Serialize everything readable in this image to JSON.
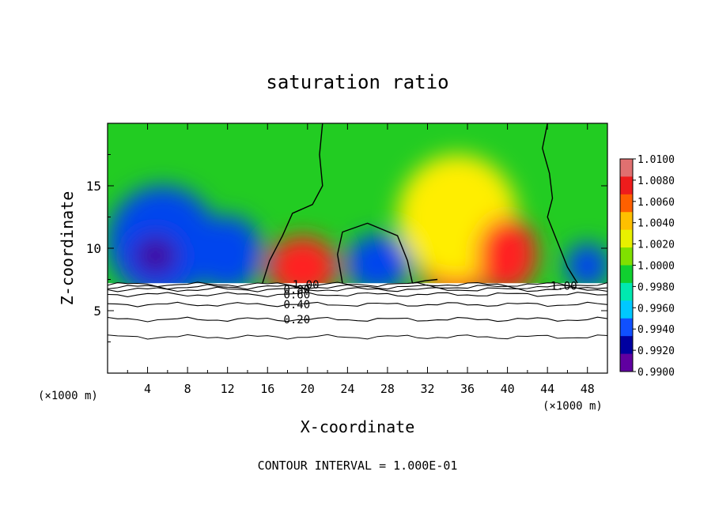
{
  "chart_data": {
    "type": "heatmap",
    "title": "saturation ratio",
    "xlabel": "X-coordinate",
    "ylabel": "Z-coordinate",
    "x_unit": "(×1000 m)",
    "x_unit_right": "(×1000 m)",
    "footer": "CONTOUR INTERVAL = 1.000E-01",
    "xlim": [
      0,
      50
    ],
    "ylim": [
      0,
      20
    ],
    "x_ticks": [
      "4",
      "8",
      "12",
      "16",
      "20",
      "24",
      "28",
      "32",
      "36",
      "40",
      "44",
      "48"
    ],
    "x_tick_values": [
      4,
      8,
      12,
      16,
      20,
      24,
      28,
      32,
      36,
      40,
      44,
      48
    ],
    "y_ticks": [
      "5",
      "10",
      "15"
    ],
    "y_tick_values": [
      5,
      10,
      15
    ],
    "colorbar": {
      "labels": [
        "1.0100",
        "1.0080",
        "1.0060",
        "1.0040",
        "1.0020",
        "1.0000",
        "0.9980",
        "0.9960",
        "0.9940",
        "0.9920",
        "0.9900"
      ],
      "values": [
        1.01,
        1.008,
        1.006,
        1.004,
        1.002,
        1.0,
        0.998,
        0.996,
        0.994,
        0.992,
        0.99
      ],
      "colors": [
        "#e07070",
        "#ee1c1c",
        "#ff6000",
        "#ffc000",
        "#e8f000",
        "#80e000",
        "#10d030",
        "#00e8b0",
        "#00c8ff",
        "#1050ff",
        "#0000a0",
        "#6000a0"
      ]
    },
    "field_colors": {
      "background": "#22cc22",
      "high": "#ff2020",
      "mid": "#ffee00",
      "low": "#0044ee",
      "very_low": "#4000a0",
      "subsaturated_layer": "#ffffff"
    },
    "contour_labels": [
      {
        "text": "1.00",
        "x": 18.5,
        "y": 7.1
      },
      {
        "text": "0.80",
        "x": 17.6,
        "y": 6.7
      },
      {
        "text": "0.60",
        "x": 17.6,
        "y": 6.3
      },
      {
        "text": "0.40",
        "x": 17.6,
        "y": 5.5
      },
      {
        "text": "0.20",
        "x": 17.6,
        "y": 4.3
      },
      {
        "text": "1.00",
        "x": 44.3,
        "y": 7.0
      }
    ],
    "lower_contours": [
      {
        "level": 0.2,
        "y": 4.3
      },
      {
        "level": 0.4,
        "y": 5.5
      },
      {
        "level": 0.6,
        "y": 6.3
      },
      {
        "level": 0.8,
        "y": 6.7
      },
      {
        "level": 0.9,
        "y": 6.9
      },
      {
        "level": 1.0,
        "y": 7.1
      }
    ],
    "base_contour": {
      "y": 2.9
    },
    "boundary_z": 7.2,
    "blobs": [
      {
        "kind": "low",
        "cx": 5.5,
        "cy": 10.5,
        "rx": 5.5,
        "ry": 4.5
      },
      {
        "kind": "very_low",
        "cx": 4.8,
        "cy": 9.4,
        "rx": 2.2,
        "ry": 1.6
      },
      {
        "kind": "low",
        "cx": 12.0,
        "cy": 9.6,
        "rx": 3.5,
        "ry": 3.0
      },
      {
        "kind": "high",
        "cx": 19.5,
        "cy": 8.5,
        "rx": 3.5,
        "ry": 2.5
      },
      {
        "kind": "low",
        "cx": 27.0,
        "cy": 8.8,
        "rx": 3.2,
        "ry": 2.3
      },
      {
        "kind": "high",
        "cx": 35.0,
        "cy": 10.5,
        "rx": 4.5,
        "ry": 4.8
      },
      {
        "kind": "mid",
        "cx": 35.0,
        "cy": 12.5,
        "rx": 6.0,
        "ry": 5.0
      },
      {
        "kind": "high",
        "cx": 40.0,
        "cy": 9.5,
        "rx": 3.0,
        "ry": 3.0
      },
      {
        "kind": "low",
        "cx": 48.0,
        "cy": 8.6,
        "rx": 2.2,
        "ry": 1.8
      }
    ],
    "saturation_contours": [
      [
        [
          15.5,
          7.2
        ],
        [
          16.2,
          9.0
        ],
        [
          17.5,
          11.0
        ],
        [
          18.5,
          12.8
        ],
        [
          20.5,
          13.5
        ],
        [
          21.5,
          15.0
        ],
        [
          21.2,
          17.5
        ],
        [
          21.5,
          20.0
        ]
      ],
      [
        [
          23.5,
          7.2
        ],
        [
          23.0,
          9.5
        ],
        [
          23.5,
          11.3
        ],
        [
          26.0,
          12.0
        ],
        [
          29.0,
          11.0
        ],
        [
          30.0,
          9.0
        ],
        [
          30.5,
          7.2
        ]
      ],
      [
        [
          30.5,
          7.2
        ],
        [
          31.8,
          7.4
        ],
        [
          33.0,
          7.5
        ]
      ],
      [
        [
          44.0,
          20.0
        ],
        [
          43.5,
          18.0
        ],
        [
          44.2,
          16.0
        ],
        [
          44.5,
          14.0
        ],
        [
          44.0,
          12.5
        ],
        [
          45.0,
          10.5
        ],
        [
          46.0,
          8.5
        ],
        [
          47.0,
          7.2
        ]
      ]
    ]
  }
}
